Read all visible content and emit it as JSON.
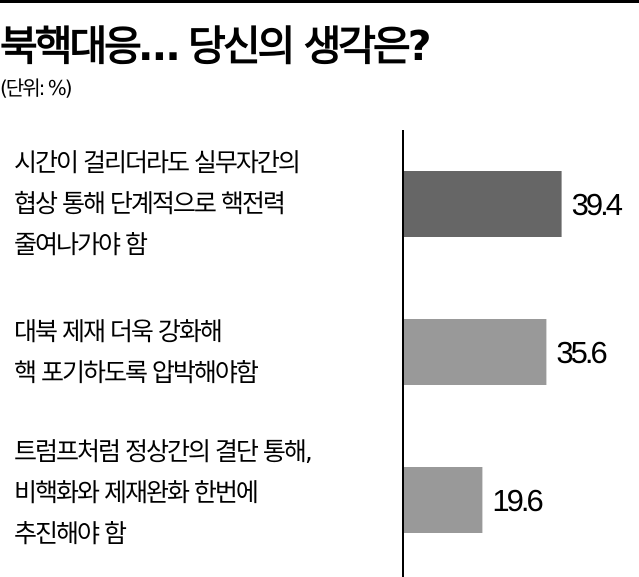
{
  "title": "북핵대응… 당신의 생각은?",
  "unit": "(단위: %)",
  "chart_data": {
    "type": "bar",
    "orientation": "horizontal",
    "categories": [
      "시간이 걸리더라도 실무자간의\n협상 통해 단계적으로 핵전력\n줄여나가야 함",
      "대북 제재 더욱 강화해\n핵 포기하도록 압박해야함",
      "트럼프처럼 정상간의 결단 통해,\n비핵화와 제재완화 한번에\n추진해야 함"
    ],
    "values": [
      39.4,
      35.6,
      19.6
    ],
    "value_labels": [
      "39.4",
      "35.6",
      "19.6"
    ],
    "colors": [
      "#666666",
      "#999999",
      "#999999"
    ],
    "xlim": [
      0,
      60
    ],
    "grid": false
  }
}
